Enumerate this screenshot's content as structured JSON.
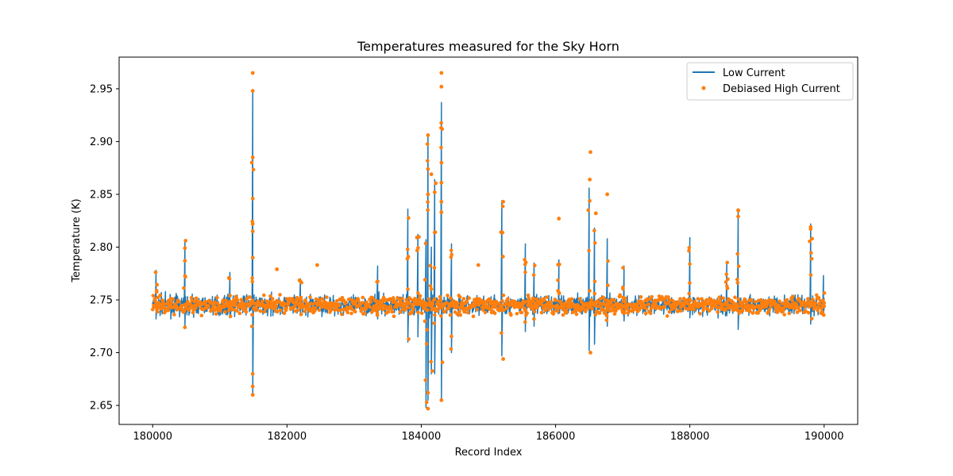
{
  "chart_data": {
    "type": "line",
    "title": "Temperatures measured for the Sky Horn",
    "xlabel": "Record Index",
    "ylabel": "Temperature (K)",
    "xlim": [
      179500,
      190500
    ],
    "ylim": [
      2.632,
      2.98
    ],
    "x_ticks": [
      180000,
      182000,
      184000,
      186000,
      188000,
      190000
    ],
    "y_ticks": [
      2.65,
      2.7,
      2.75,
      2.8,
      2.85,
      2.9,
      2.95
    ],
    "y_tick_labels": [
      "2.65",
      "2.70",
      "2.75",
      "2.80",
      "2.85",
      "2.90",
      "2.95"
    ],
    "legend_position": "top-right",
    "x_range": [
      180000,
      190000
    ],
    "baseline": 2.745,
    "series": [
      {
        "name": "Low Current",
        "mark": "line",
        "color": "#1f77b4",
        "spikes": [
          {
            "x": 180050,
            "y_high": 2.778,
            "y_low": 2.732
          },
          {
            "x": 180480,
            "y_high": 2.807,
            "y_low": 2.725
          },
          {
            "x": 181150,
            "y_high": 2.776,
            "y_low": 2.733
          },
          {
            "x": 181490,
            "y_high": 2.948,
            "y_low": 2.66
          },
          {
            "x": 182200,
            "y_high": 2.77,
            "y_low": 2.735
          },
          {
            "x": 183350,
            "y_high": 2.782,
            "y_low": 2.732
          },
          {
            "x": 183800,
            "y_high": 2.836,
            "y_low": 2.71
          },
          {
            "x": 183950,
            "y_high": 2.812,
            "y_low": 2.715
          },
          {
            "x": 184070,
            "y_high": 2.807,
            "y_low": 2.648
          },
          {
            "x": 184100,
            "y_high": 2.906,
            "y_low": 2.655
          },
          {
            "x": 184150,
            "y_high": 2.8,
            "y_low": 2.68
          },
          {
            "x": 184200,
            "y_high": 2.864,
            "y_low": 2.68
          },
          {
            "x": 184300,
            "y_high": 2.937,
            "y_low": 2.655
          },
          {
            "x": 184450,
            "y_high": 2.803,
            "y_low": 2.7
          },
          {
            "x": 185200,
            "y_high": 2.844,
            "y_low": 2.697
          },
          {
            "x": 185550,
            "y_high": 2.803,
            "y_low": 2.72
          },
          {
            "x": 185680,
            "y_high": 2.785,
            "y_low": 2.725
          },
          {
            "x": 186050,
            "y_high": 2.788,
            "y_low": 2.738
          },
          {
            "x": 186500,
            "y_high": 2.856,
            "y_low": 2.702
          },
          {
            "x": 186580,
            "y_high": 2.818,
            "y_low": 2.708
          },
          {
            "x": 186770,
            "y_high": 2.808,
            "y_low": 2.725
          },
          {
            "x": 187020,
            "y_high": 2.782,
            "y_low": 2.73
          },
          {
            "x": 188000,
            "y_high": 2.809,
            "y_low": 2.733
          },
          {
            "x": 188550,
            "y_high": 2.786,
            "y_low": 2.735
          },
          {
            "x": 188720,
            "y_high": 2.835,
            "y_low": 2.722
          },
          {
            "x": 189800,
            "y_high": 2.822,
            "y_low": 2.727
          },
          {
            "x": 189990,
            "y_high": 2.773,
            "y_low": 2.735
          }
        ]
      },
      {
        "name": "Debiased High Current",
        "mark": "scatter",
        "color": "#ff7f0e",
        "points": [
          {
            "x": 181490,
            "y": 2.965
          },
          {
            "x": 181490,
            "y": 2.948
          },
          {
            "x": 181490,
            "y": 2.885
          },
          {
            "x": 181490,
            "y": 2.846
          },
          {
            "x": 181490,
            "y": 2.822
          },
          {
            "x": 181490,
            "y": 2.815
          },
          {
            "x": 181490,
            "y": 2.79
          },
          {
            "x": 181490,
            "y": 2.68
          },
          {
            "x": 181490,
            "y": 2.668
          },
          {
            "x": 181490,
            "y": 2.66
          },
          {
            "x": 184300,
            "y": 2.965
          },
          {
            "x": 184300,
            "y": 2.952
          },
          {
            "x": 184300,
            "y": 2.88
          },
          {
            "x": 184300,
            "y": 2.861
          },
          {
            "x": 184300,
            "y": 2.843
          },
          {
            "x": 184300,
            "y": 2.833
          },
          {
            "x": 184300,
            "y": 2.655
          },
          {
            "x": 184100,
            "y": 2.906
          },
          {
            "x": 184100,
            "y": 2.874
          },
          {
            "x": 184100,
            "y": 2.85
          },
          {
            "x": 184100,
            "y": 2.662
          },
          {
            "x": 184100,
            "y": 2.647
          },
          {
            "x": 184150,
            "y": 2.869
          },
          {
            "x": 184200,
            "y": 2.852
          },
          {
            "x": 186520,
            "y": 2.89
          },
          {
            "x": 186510,
            "y": 2.864
          },
          {
            "x": 186770,
            "y": 2.85
          },
          {
            "x": 186600,
            "y": 2.832
          },
          {
            "x": 186050,
            "y": 2.827
          },
          {
            "x": 188720,
            "y": 2.835
          },
          {
            "x": 188720,
            "y": 2.829
          },
          {
            "x": 189800,
            "y": 2.819
          },
          {
            "x": 189820,
            "y": 2.808
          },
          {
            "x": 181850,
            "y": 2.779
          },
          {
            "x": 182450,
            "y": 2.783
          },
          {
            "x": 184850,
            "y": 2.783
          },
          {
            "x": 185220,
            "y": 2.843
          },
          {
            "x": 185220,
            "y": 2.694
          },
          {
            "x": 180480,
            "y": 2.799
          },
          {
            "x": 180480,
            "y": 2.787
          },
          {
            "x": 180480,
            "y": 2.724
          },
          {
            "x": 186520,
            "y": 2.7
          }
        ]
      }
    ]
  }
}
